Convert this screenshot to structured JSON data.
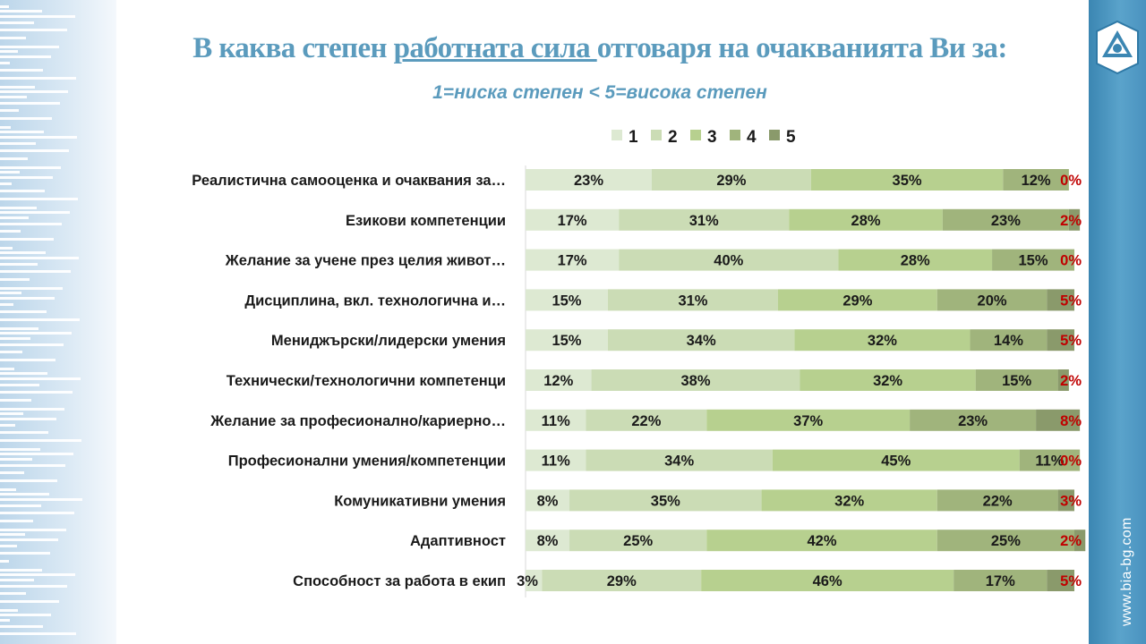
{
  "header": {
    "title_before": "В каква степен ",
    "title_underlined": "работната сила ",
    "title_after": "отговаря на очакванията Ви за:",
    "subtitle": "1=ниска степен  < 5=висока степен"
  },
  "brand": {
    "url": "www.bia-bg.com",
    "logo_icon": "triangle-logo-icon"
  },
  "colors": {
    "accent": "#5b9bbd",
    "side_bar": "#4a92bf",
    "highlight_red": "#c00000",
    "series": [
      "#dde9d2",
      "#cbdcb5",
      "#b7d08f",
      "#a0b47c",
      "#8a9a6b"
    ]
  },
  "chart_data": {
    "type": "bar",
    "orientation": "horizontal",
    "stacked": true,
    "title": "В каква степен работната сила отговаря на очакванията Ви за:",
    "subtitle": "1=ниска степен  < 5=висока степен",
    "xlabel": "",
    "ylabel": "",
    "xlim": [
      0,
      100
    ],
    "legend": {
      "position": "top"
    },
    "grid": false,
    "categories": [
      "Реалистична  самооценка и очаквания за…",
      "Езикови  компетенции",
      "Желание  за учене  през целия живот…",
      "Дисциплина,  вкл.  технологична  и…",
      "Мениджърски/лидерски  умения",
      "Технически/технологични  компетенци",
      "Желание  за професионално/кариерно…",
      "Професионални  умения/компетенции",
      "Комуникативни  умения",
      "Адаптивност",
      "Способност  за работа  в екип"
    ],
    "series": [
      {
        "name": "1",
        "values": [
          23,
          17,
          17,
          15,
          15,
          12,
          11,
          11,
          8,
          8,
          3
        ]
      },
      {
        "name": "2",
        "values": [
          29,
          31,
          40,
          31,
          34,
          38,
          22,
          34,
          35,
          25,
          29
        ]
      },
      {
        "name": "3",
        "values": [
          35,
          28,
          28,
          29,
          32,
          32,
          37,
          45,
          32,
          42,
          46
        ]
      },
      {
        "name": "4",
        "values": [
          12,
          23,
          15,
          20,
          14,
          15,
          23,
          11,
          22,
          25,
          17
        ]
      },
      {
        "name": "5",
        "values": [
          0,
          2,
          0,
          5,
          5,
          2,
          8,
          0,
          3,
          2,
          5
        ]
      }
    ],
    "value_suffix": "%"
  }
}
